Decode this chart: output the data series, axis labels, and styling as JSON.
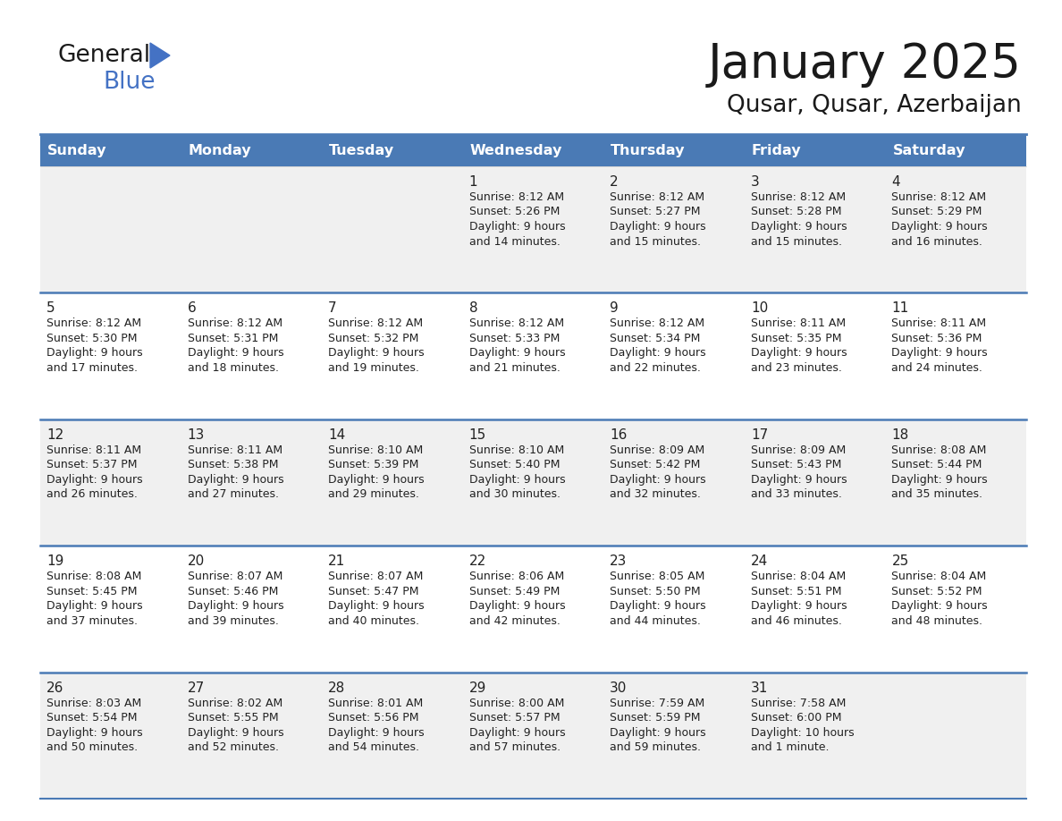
{
  "title": "January 2025",
  "subtitle": "Qusar, Qusar, Azerbaijan",
  "days_of_week": [
    "Sunday",
    "Monday",
    "Tuesday",
    "Wednesday",
    "Thursday",
    "Friday",
    "Saturday"
  ],
  "header_bg": "#4a7ab5",
  "header_text": "#FFFFFF",
  "row_bg_odd": "#f0f0f0",
  "row_bg_even": "#FFFFFF",
  "line_color": "#4a7ab5",
  "text_color": "#222222",
  "day_num_color": "#222222",
  "calendar_data": [
    [
      {
        "day": "",
        "sunrise": "",
        "sunset": "",
        "daylight": ""
      },
      {
        "day": "",
        "sunrise": "",
        "sunset": "",
        "daylight": ""
      },
      {
        "day": "",
        "sunrise": "",
        "sunset": "",
        "daylight": ""
      },
      {
        "day": "1",
        "sunrise": "8:12 AM",
        "sunset": "5:26 PM",
        "daylight": "9 hours and 14 minutes."
      },
      {
        "day": "2",
        "sunrise": "8:12 AM",
        "sunset": "5:27 PM",
        "daylight": "9 hours and 15 minutes."
      },
      {
        "day": "3",
        "sunrise": "8:12 AM",
        "sunset": "5:28 PM",
        "daylight": "9 hours and 15 minutes."
      },
      {
        "day": "4",
        "sunrise": "8:12 AM",
        "sunset": "5:29 PM",
        "daylight": "9 hours and 16 minutes."
      }
    ],
    [
      {
        "day": "5",
        "sunrise": "8:12 AM",
        "sunset": "5:30 PM",
        "daylight": "9 hours and 17 minutes."
      },
      {
        "day": "6",
        "sunrise": "8:12 AM",
        "sunset": "5:31 PM",
        "daylight": "9 hours and 18 minutes."
      },
      {
        "day": "7",
        "sunrise": "8:12 AM",
        "sunset": "5:32 PM",
        "daylight": "9 hours and 19 minutes."
      },
      {
        "day": "8",
        "sunrise": "8:12 AM",
        "sunset": "5:33 PM",
        "daylight": "9 hours and 21 minutes."
      },
      {
        "day": "9",
        "sunrise": "8:12 AM",
        "sunset": "5:34 PM",
        "daylight": "9 hours and 22 minutes."
      },
      {
        "day": "10",
        "sunrise": "8:11 AM",
        "sunset": "5:35 PM",
        "daylight": "9 hours and 23 minutes."
      },
      {
        "day": "11",
        "sunrise": "8:11 AM",
        "sunset": "5:36 PM",
        "daylight": "9 hours and 24 minutes."
      }
    ],
    [
      {
        "day": "12",
        "sunrise": "8:11 AM",
        "sunset": "5:37 PM",
        "daylight": "9 hours and 26 minutes."
      },
      {
        "day": "13",
        "sunrise": "8:11 AM",
        "sunset": "5:38 PM",
        "daylight": "9 hours and 27 minutes."
      },
      {
        "day": "14",
        "sunrise": "8:10 AM",
        "sunset": "5:39 PM",
        "daylight": "9 hours and 29 minutes."
      },
      {
        "day": "15",
        "sunrise": "8:10 AM",
        "sunset": "5:40 PM",
        "daylight": "9 hours and 30 minutes."
      },
      {
        "day": "16",
        "sunrise": "8:09 AM",
        "sunset": "5:42 PM",
        "daylight": "9 hours and 32 minutes."
      },
      {
        "day": "17",
        "sunrise": "8:09 AM",
        "sunset": "5:43 PM",
        "daylight": "9 hours and 33 minutes."
      },
      {
        "day": "18",
        "sunrise": "8:08 AM",
        "sunset": "5:44 PM",
        "daylight": "9 hours and 35 minutes."
      }
    ],
    [
      {
        "day": "19",
        "sunrise": "8:08 AM",
        "sunset": "5:45 PM",
        "daylight": "9 hours and 37 minutes."
      },
      {
        "day": "20",
        "sunrise": "8:07 AM",
        "sunset": "5:46 PM",
        "daylight": "9 hours and 39 minutes."
      },
      {
        "day": "21",
        "sunrise": "8:07 AM",
        "sunset": "5:47 PM",
        "daylight": "9 hours and 40 minutes."
      },
      {
        "day": "22",
        "sunrise": "8:06 AM",
        "sunset": "5:49 PM",
        "daylight": "9 hours and 42 minutes."
      },
      {
        "day": "23",
        "sunrise": "8:05 AM",
        "sunset": "5:50 PM",
        "daylight": "9 hours and 44 minutes."
      },
      {
        "day": "24",
        "sunrise": "8:04 AM",
        "sunset": "5:51 PM",
        "daylight": "9 hours and 46 minutes."
      },
      {
        "day": "25",
        "sunrise": "8:04 AM",
        "sunset": "5:52 PM",
        "daylight": "9 hours and 48 minutes."
      }
    ],
    [
      {
        "day": "26",
        "sunrise": "8:03 AM",
        "sunset": "5:54 PM",
        "daylight": "9 hours and 50 minutes."
      },
      {
        "day": "27",
        "sunrise": "8:02 AM",
        "sunset": "5:55 PM",
        "daylight": "9 hours and 52 minutes."
      },
      {
        "day": "28",
        "sunrise": "8:01 AM",
        "sunset": "5:56 PM",
        "daylight": "9 hours and 54 minutes."
      },
      {
        "day": "29",
        "sunrise": "8:00 AM",
        "sunset": "5:57 PM",
        "daylight": "9 hours and 57 minutes."
      },
      {
        "day": "30",
        "sunrise": "7:59 AM",
        "sunset": "5:59 PM",
        "daylight": "9 hours and 59 minutes."
      },
      {
        "day": "31",
        "sunrise": "7:58 AM",
        "sunset": "6:00 PM",
        "daylight": "10 hours and 1 minute."
      },
      {
        "day": "",
        "sunrise": "",
        "sunset": "",
        "daylight": ""
      }
    ]
  ]
}
